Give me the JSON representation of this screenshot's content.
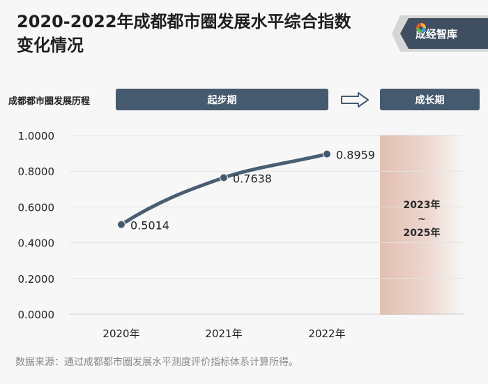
{
  "title": {
    "line1": "2020-2022年成都都市圈发展水平综合指数",
    "line2": "变化情况"
  },
  "brand": {
    "name": "成经智库",
    "logo_icon": "swirl-logo-icon"
  },
  "stages": {
    "label": "成都都市圈发展历程",
    "stage1": "起步期",
    "arrow_icon": "right-arrow-icon",
    "stage2": "成长期"
  },
  "future_period": {
    "line1": "2023年",
    "line2": "~",
    "line3": "2025年"
  },
  "chart_data": {
    "type": "line",
    "categories": [
      "2020年",
      "2021年",
      "2022年"
    ],
    "series": [
      {
        "values": [
          0.5014,
          0.7638,
          0.8959
        ],
        "labels": [
          "0.5014",
          "0.7638",
          "0.8959"
        ]
      }
    ],
    "yticks": [
      "0.0000",
      "0.2000",
      "0.4000",
      "0.6000",
      "0.8000",
      "1.0000"
    ],
    "ylim": [
      0,
      1
    ],
    "grid": true,
    "line_color": "#4a5e73",
    "highlight_color": "#e2bfb1"
  },
  "source": "数据来源：通过成都都市圈发展水平测度评价指标体系计算所得。"
}
